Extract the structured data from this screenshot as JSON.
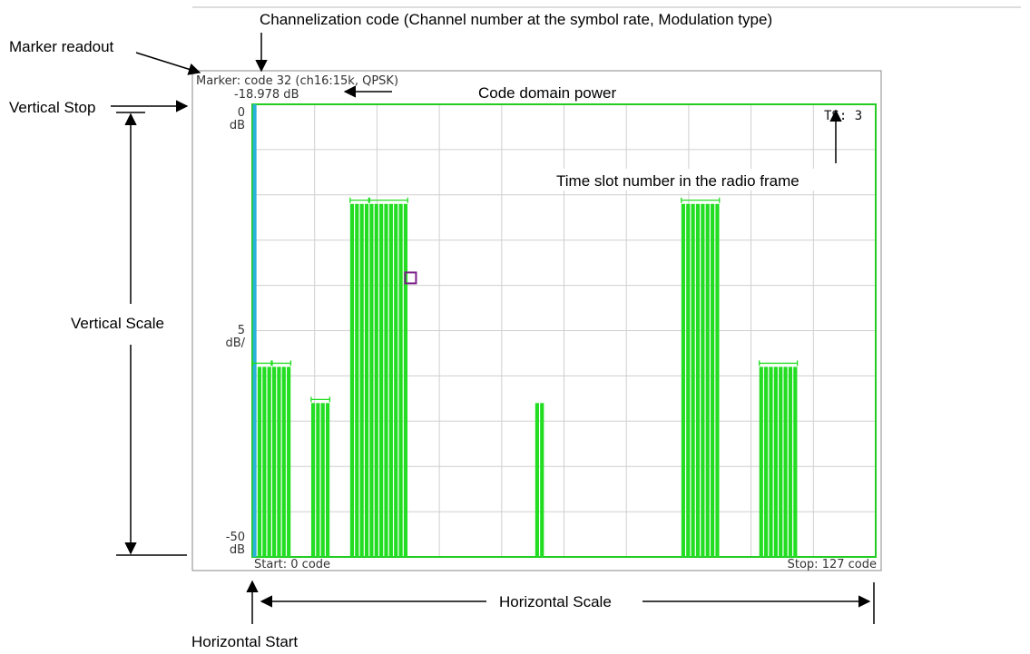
{
  "annotations": {
    "channelization_code": "Channelization code (Channel number at the symbol rate, Modulation type)",
    "marker_readout": "Marker readout",
    "vertical_stop": "Vertical Stop",
    "vertical_scale": "Vertical Scale",
    "code_domain_power": "Code domain power",
    "time_slot": "Time slot number in the radio frame",
    "horizontal_scale": "Horizontal Scale",
    "horizontal_start": "Horizontal Start"
  },
  "screen": {
    "marker_line1": "Marker: code 32 (ch16:15k, QPSK)",
    "marker_line2": "-18.978 dB",
    "ts_label": "TS: 3",
    "y_top_value": "0",
    "y_top_unit": "dB",
    "y_mid_value": "5",
    "y_mid_unit": "dB/",
    "y_bottom_value": "-50",
    "y_bottom_unit": "dB",
    "start_label": "Start: 0 code",
    "stop_label": "Stop: 127 code"
  },
  "chart_data": {
    "type": "bar",
    "x_unit": "code",
    "x_range": [
      0,
      127
    ],
    "ylim": [
      -50,
      0
    ],
    "y_unit": "dB",
    "y_scale": "5 dB/div",
    "grid": true,
    "marker": {
      "code": 32,
      "value_db": -18.978
    },
    "bars": [
      {
        "code": 0,
        "value": 0,
        "highlight": true
      },
      {
        "code": 1,
        "value": -29
      },
      {
        "code": 2,
        "value": -29
      },
      {
        "code": 3,
        "value": -29
      },
      {
        "code": 4,
        "value": -29
      },
      {
        "code": 5,
        "value": -29
      },
      {
        "code": 6,
        "value": -29
      },
      {
        "code": 7,
        "value": -29
      },
      {
        "code": 12,
        "value": -33
      },
      {
        "code": 13,
        "value": -33
      },
      {
        "code": 14,
        "value": -33
      },
      {
        "code": 15,
        "value": -33
      },
      {
        "code": 20,
        "value": -11
      },
      {
        "code": 21,
        "value": -11
      },
      {
        "code": 22,
        "value": -11
      },
      {
        "code": 23,
        "value": -11
      },
      {
        "code": 24,
        "value": -11
      },
      {
        "code": 25,
        "value": -11
      },
      {
        "code": 26,
        "value": -11
      },
      {
        "code": 27,
        "value": -11
      },
      {
        "code": 28,
        "value": -11
      },
      {
        "code": 29,
        "value": -11
      },
      {
        "code": 30,
        "value": -11
      },
      {
        "code": 31,
        "value": -11
      },
      {
        "code": 58,
        "value": -33
      },
      {
        "code": 59,
        "value": -33
      },
      {
        "code": 88,
        "value": -11
      },
      {
        "code": 89,
        "value": -11
      },
      {
        "code": 90,
        "value": -11
      },
      {
        "code": 91,
        "value": -11
      },
      {
        "code": 92,
        "value": -11
      },
      {
        "code": 93,
        "value": -11
      },
      {
        "code": 94,
        "value": -11
      },
      {
        "code": 95,
        "value": -11
      },
      {
        "code": 104,
        "value": -29
      },
      {
        "code": 105,
        "value": -29
      },
      {
        "code": 106,
        "value": -29
      },
      {
        "code": 107,
        "value": -29
      },
      {
        "code": 108,
        "value": -29
      },
      {
        "code": 109,
        "value": -29
      },
      {
        "code": 110,
        "value": -29
      },
      {
        "code": 111,
        "value": -29
      }
    ],
    "overlays": [
      {
        "start": 0,
        "end": 3,
        "value": -29
      },
      {
        "start": 4,
        "end": 7,
        "value": -29
      },
      {
        "start": 12,
        "end": 15,
        "value": -33
      },
      {
        "start": 20,
        "end": 23,
        "value": -11
      },
      {
        "start": 24,
        "end": 31,
        "value": -11
      },
      {
        "start": 88,
        "end": 95,
        "value": -11
      },
      {
        "start": 104,
        "end": 111,
        "value": -29
      }
    ]
  },
  "colors": {
    "bar": "#22dd22",
    "highlight": "#2ab2d8",
    "marker": "#7a1f8a",
    "grid": "#cfcfcf",
    "plot_border": "#22cc22"
  }
}
